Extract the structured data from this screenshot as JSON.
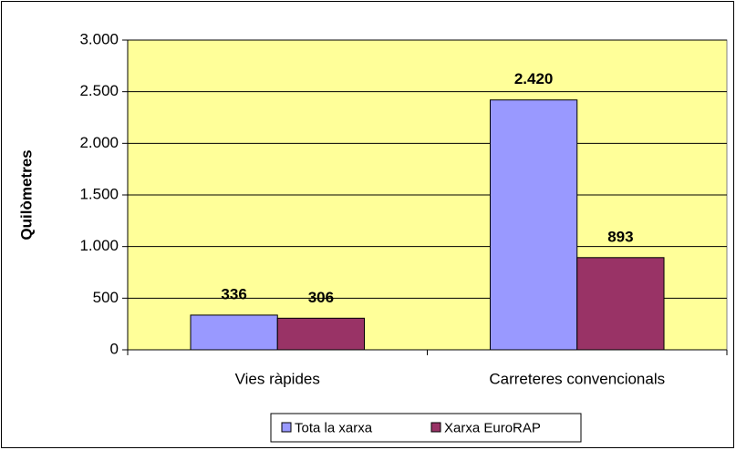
{
  "chart_data": {
    "type": "bar",
    "y_label": "Quilòmetres",
    "categories": [
      "Vies ràpides",
      "Carreteres convencionals"
    ],
    "series": [
      {
        "name": "Tota la xarxa",
        "color": "#9999ff",
        "values": [
          336,
          2420
        ],
        "value_labels": [
          "336",
          "2.420"
        ]
      },
      {
        "name": "Xarxa EuroRAP",
        "color": "#993366",
        "values": [
          306,
          893
        ]
      }
    ],
    "ylim": [
      0,
      3000
    ],
    "yticks": [
      0,
      500,
      {
        "value": 1000,
        "label": "1.000"
      },
      {
        "value": 1500,
        "label": "1.500"
      },
      {
        "value": 2000,
        "label": "2.000"
      },
      {
        "value": 2500,
        "label": "2.500"
      },
      {
        "value": 3000,
        "label": "3.000"
      }
    ],
    "grid": true,
    "plot_background": "#ffff99",
    "legend": "bottom"
  }
}
